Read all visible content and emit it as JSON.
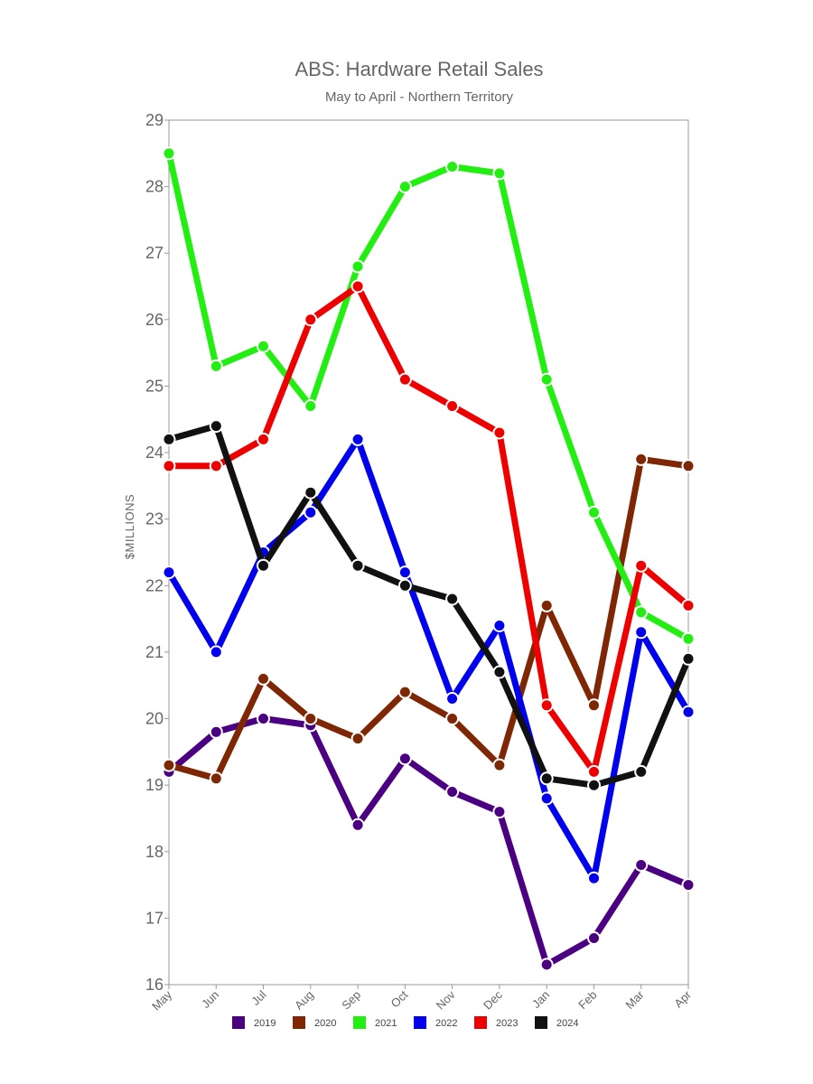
{
  "chart_data": {
    "type": "line",
    "title": "ABS: Hardware Retail Sales",
    "subtitle": "May to April - Northern Territory",
    "ylabel": "$MILLIONS",
    "xlabel": "",
    "ylim": [
      16,
      29
    ],
    "yticks": [
      16,
      17,
      18,
      19,
      20,
      21,
      22,
      23,
      24,
      25,
      26,
      27,
      28,
      29
    ],
    "categories": [
      "May",
      "Jun",
      "Jul",
      "Aug",
      "Sep",
      "Oct",
      "Nov",
      "Dec",
      "Jan",
      "Feb",
      "Mar",
      "Apr"
    ],
    "grid": false,
    "legend_position": "bottom",
    "series": [
      {
        "name": "2019",
        "color": "#4b0082",
        "values": [
          19.2,
          19.8,
          20.0,
          19.9,
          18.4,
          19.4,
          18.9,
          18.6,
          16.3,
          16.7,
          17.8,
          17.5
        ]
      },
      {
        "name": "2020",
        "color": "#7f2704",
        "values": [
          19.3,
          19.1,
          20.6,
          20.0,
          19.7,
          20.4,
          20.0,
          19.3,
          21.7,
          20.2,
          23.9,
          23.8
        ]
      },
      {
        "name": "2021",
        "color": "#22ee11",
        "values": [
          28.5,
          25.3,
          25.6,
          24.7,
          26.8,
          28.0,
          28.3,
          28.2,
          25.1,
          23.1,
          21.6,
          21.2
        ]
      },
      {
        "name": "2022",
        "color": "#0000ee",
        "values": [
          22.2,
          21.0,
          22.5,
          23.1,
          24.2,
          22.2,
          20.3,
          21.4,
          18.8,
          17.6,
          21.3,
          20.1
        ]
      },
      {
        "name": "2023",
        "color": "#ee0000",
        "values": [
          23.8,
          23.8,
          24.2,
          26.0,
          26.5,
          25.1,
          24.7,
          24.3,
          20.2,
          19.2,
          22.3,
          21.7
        ]
      },
      {
        "name": "2024",
        "color": "#111111",
        "values": [
          24.2,
          24.4,
          22.3,
          23.4,
          22.3,
          22.0,
          21.8,
          20.7,
          19.1,
          19.0,
          19.2,
          20.9
        ]
      }
    ]
  }
}
